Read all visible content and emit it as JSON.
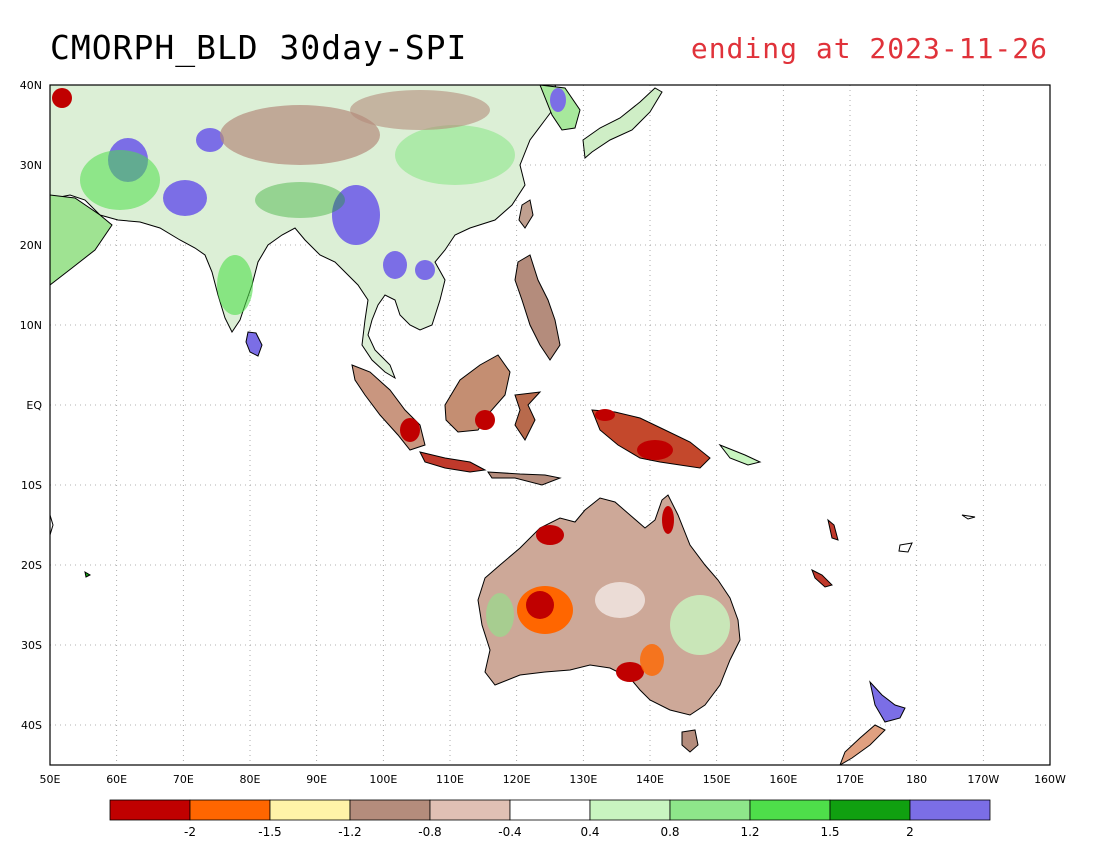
{
  "title": {
    "product": "CMORPH_BLD 30day-SPI",
    "ending": "ending at 2023-11-26"
  },
  "map": {
    "lon_range": [
      50,
      200
    ],
    "lat_range": [
      -45,
      40
    ],
    "lon_ticks": [
      "50E",
      "60E",
      "70E",
      "80E",
      "90E",
      "100E",
      "110E",
      "120E",
      "130E",
      "140E",
      "150E",
      "160E",
      "170E",
      "180",
      "170W",
      "160W"
    ],
    "lat_ticks": [
      "40N",
      "30N",
      "20N",
      "10N",
      "EQ",
      "10S",
      "20S",
      "30S",
      "40S"
    ],
    "grid": "dotted"
  },
  "colorbar": {
    "colors": [
      "#c00000",
      "#ff6600",
      "#fff3a8",
      "#b48c7c",
      "#e0c0b4",
      "#ffffff",
      "#c8f5c0",
      "#8ee68a",
      "#4ede4a",
      "#10a010",
      "#7b6ee6"
    ],
    "labels": [
      "-2",
      "-1.5",
      "-1.2",
      "-0.8",
      "-0.4",
      "0.4",
      "0.8",
      "1.2",
      "1.5",
      "2"
    ]
  }
}
